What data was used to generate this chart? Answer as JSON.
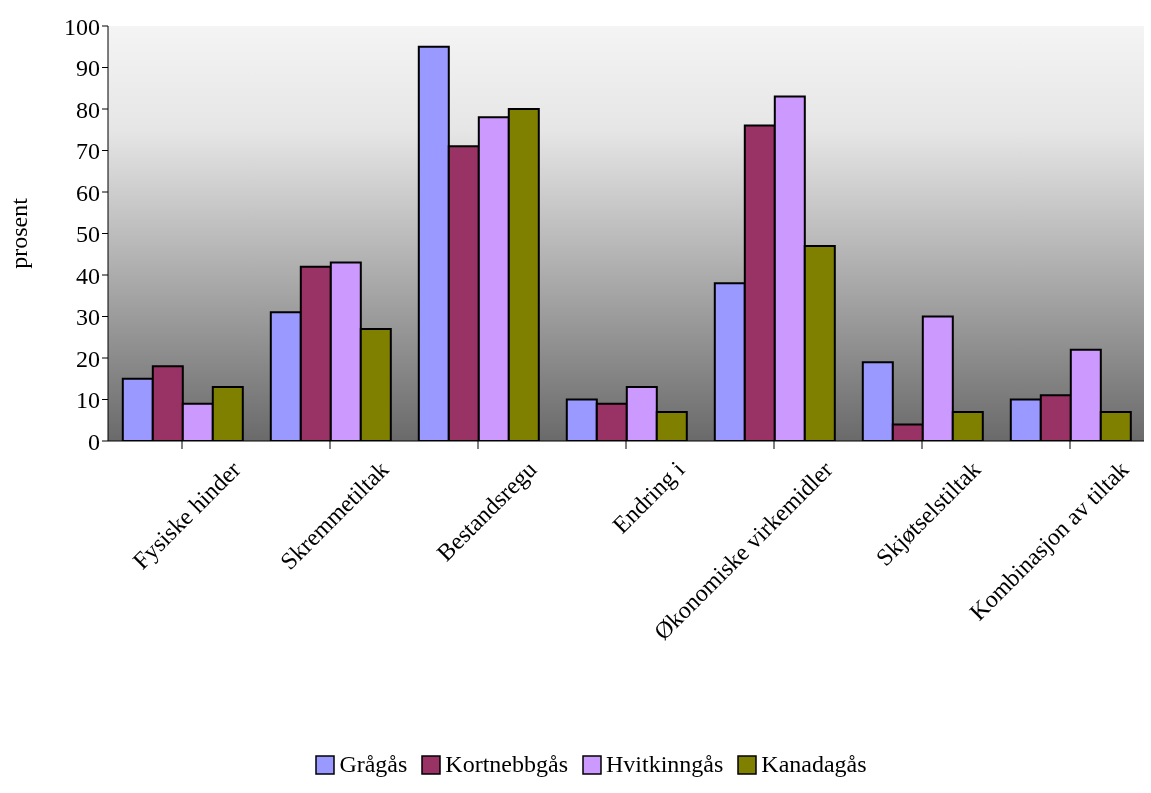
{
  "chart_data": {
    "type": "bar",
    "ylabel": "prosent",
    "categories": [
      "Fysiske hinder",
      "Skremmetiltak",
      "Bestandsregu",
      "Endring i",
      "Økonomiske virkemidler",
      "Skjøtselstiltak",
      "Kombinasjon av tiltak"
    ],
    "series": [
      {
        "name": "Grågås",
        "color": "#9999ff",
        "values": [
          15,
          31,
          95,
          10,
          38,
          19,
          10
        ]
      },
      {
        "name": "Kortnebbgås",
        "color": "#993366",
        "values": [
          18,
          42,
          71,
          9,
          76,
          4,
          11
        ]
      },
      {
        "name": "Hvitkinngås",
        "color": "#cc99ff",
        "values": [
          9,
          43,
          78,
          13,
          83,
          30,
          22
        ]
      },
      {
        "name": "Kanadagås",
        "color": "#808000",
        "values": [
          13,
          27,
          80,
          7,
          47,
          7,
          7
        ]
      }
    ],
    "ylim": [
      0,
      100
    ],
    "yticks": [
      0,
      10,
      20,
      30,
      40,
      50,
      60,
      70,
      80,
      90,
      100
    ],
    "legend": "bottom"
  }
}
